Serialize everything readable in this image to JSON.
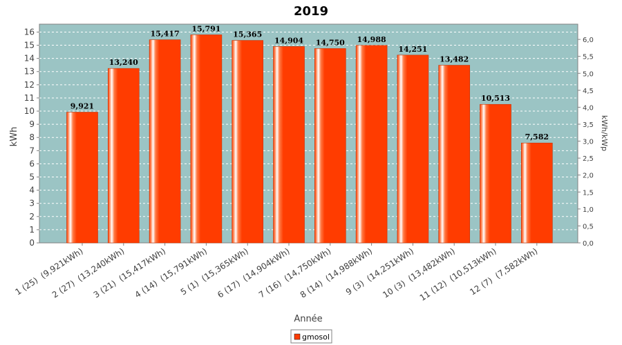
{
  "chart_data": {
    "type": "bar",
    "title": "2019",
    "xlabel": "Année",
    "ylabel": "kWh",
    "ylabel_right": "kWh/kWp",
    "ylim": [
      0,
      16.6
    ],
    "yticks": [
      0,
      1,
      2,
      3,
      4,
      5,
      6,
      7,
      8,
      9,
      10,
      11,
      12,
      13,
      14,
      15,
      16
    ],
    "ylim_right": [
      0,
      6.45
    ],
    "yticks_right": [
      "0,0",
      "0,5",
      "1,0",
      "1,5",
      "2,0",
      "2,5",
      "3,0",
      "3,5",
      "4,0",
      "4,5",
      "5,0",
      "5,5",
      "6,0"
    ],
    "grid": true,
    "legend_position": "bottom",
    "categories": [
      "1 (25)  (9,921kWh)",
      "2 (27)  (13,240kWh)",
      "3 (21)  (15,417kWh)",
      "4 (14)  (15,791kWh)",
      "5 (1)  (15,365kWh)",
      "6 (17)  (14,904kWh)",
      "7 (16)  (14,750kWh)",
      "8 (14)  (14,988kWh)",
      "9 (3)  (14,251kWh)",
      "10 (3)  (13,482kWh)",
      "11 (12)  (10,513kWh)",
      "12 (7)  (7,582kWh)"
    ],
    "series": [
      {
        "name": "gmosol",
        "color": "#ff3c00",
        "values": [
          9.921,
          13.24,
          15.417,
          15.791,
          15.365,
          14.904,
          14.75,
          14.988,
          14.251,
          13.482,
          10.513,
          7.582
        ],
        "labels": [
          "9,921",
          "13,240",
          "15,417",
          "15,791",
          "15,365",
          "14,904",
          "14,750",
          "14,988",
          "14,251",
          "13,482",
          "10,513",
          "7,582"
        ]
      }
    ],
    "plot_background": "#9bc4c4"
  }
}
